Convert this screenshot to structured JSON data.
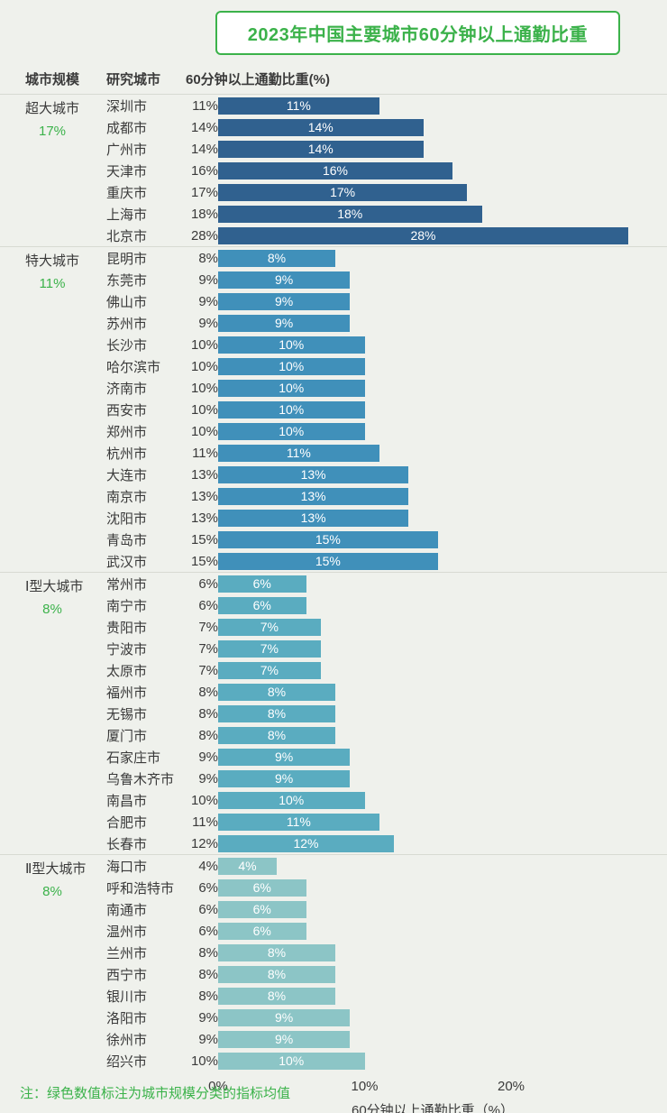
{
  "title": "2023年中国主要城市60分钟以上通勤比重",
  "note": "注：绿色数值标注为城市规模分类的指标均值",
  "header": {
    "scale_col": "城市规模",
    "city_col": "研究城市",
    "value_col": "60分钟以上通勤比重(%)"
  },
  "axis": {
    "ticks": [
      "0%",
      "10%",
      "20%"
    ],
    "tick_values": [
      0,
      10,
      20
    ],
    "title": "60分钟以上通勤比重（%）",
    "max": 28
  },
  "colors": {
    "accent_green": "#3bb24a",
    "background": "#eff1ec",
    "separator": "#d7dad2",
    "group_colors": [
      "#30618f",
      "#4090ba",
      "#5aacc0",
      "#8cc5c6"
    ]
  },
  "chart_data": {
    "type": "bar",
    "orientation": "horizontal",
    "title": "2023年中国主要城市60分钟以上通勤比重",
    "xlabel": "60分钟以上通勤比重（%）",
    "xlim": [
      0,
      28
    ],
    "grid": false,
    "legend": "none",
    "groups": [
      {
        "name": "超大城市",
        "average": "17%",
        "color": "#30618f",
        "cities": [
          {
            "city": "深圳市",
            "value": 11
          },
          {
            "city": "成都市",
            "value": 14
          },
          {
            "city": "广州市",
            "value": 14
          },
          {
            "city": "天津市",
            "value": 16
          },
          {
            "city": "重庆市",
            "value": 17
          },
          {
            "city": "上海市",
            "value": 18
          },
          {
            "city": "北京市",
            "value": 28
          }
        ]
      },
      {
        "name": "特大城市",
        "average": "11%",
        "color": "#4090ba",
        "cities": [
          {
            "city": "昆明市",
            "value": 8
          },
          {
            "city": "东莞市",
            "value": 9
          },
          {
            "city": "佛山市",
            "value": 9
          },
          {
            "city": "苏州市",
            "value": 9
          },
          {
            "city": "长沙市",
            "value": 10
          },
          {
            "city": "哈尔滨市",
            "value": 10
          },
          {
            "city": "济南市",
            "value": 10
          },
          {
            "city": "西安市",
            "value": 10
          },
          {
            "city": "郑州市",
            "value": 10
          },
          {
            "city": "杭州市",
            "value": 11
          },
          {
            "city": "大连市",
            "value": 13
          },
          {
            "city": "南京市",
            "value": 13
          },
          {
            "city": "沈阳市",
            "value": 13
          },
          {
            "city": "青岛市",
            "value": 15
          },
          {
            "city": "武汉市",
            "value": 15
          }
        ]
      },
      {
        "name": "Ⅰ型大城市",
        "average": "8%",
        "color": "#5aacc0",
        "cities": [
          {
            "city": "常州市",
            "value": 6
          },
          {
            "city": "南宁市",
            "value": 6
          },
          {
            "city": "贵阳市",
            "value": 7
          },
          {
            "city": "宁波市",
            "value": 7
          },
          {
            "city": "太原市",
            "value": 7
          },
          {
            "city": "福州市",
            "value": 8
          },
          {
            "city": "无锡市",
            "value": 8
          },
          {
            "city": "厦门市",
            "value": 8
          },
          {
            "city": "石家庄市",
            "value": 9
          },
          {
            "city": "乌鲁木齐市",
            "value": 9
          },
          {
            "city": "南昌市",
            "value": 10
          },
          {
            "city": "合肥市",
            "value": 11
          },
          {
            "city": "长春市",
            "value": 12
          }
        ]
      },
      {
        "name": "Ⅱ型大城市",
        "average": "8%",
        "color": "#8cc5c6",
        "cities": [
          {
            "city": "海口市",
            "value": 4
          },
          {
            "city": "呼和浩特市",
            "value": 6
          },
          {
            "city": "南通市",
            "value": 6
          },
          {
            "city": "温州市",
            "value": 6
          },
          {
            "city": "兰州市",
            "value": 8
          },
          {
            "city": "西宁市",
            "value": 8
          },
          {
            "city": "银川市",
            "value": 8
          },
          {
            "city": "洛阳市",
            "value": 9
          },
          {
            "city": "徐州市",
            "value": 9
          },
          {
            "city": "绍兴市",
            "value": 10
          }
        ]
      }
    ]
  }
}
